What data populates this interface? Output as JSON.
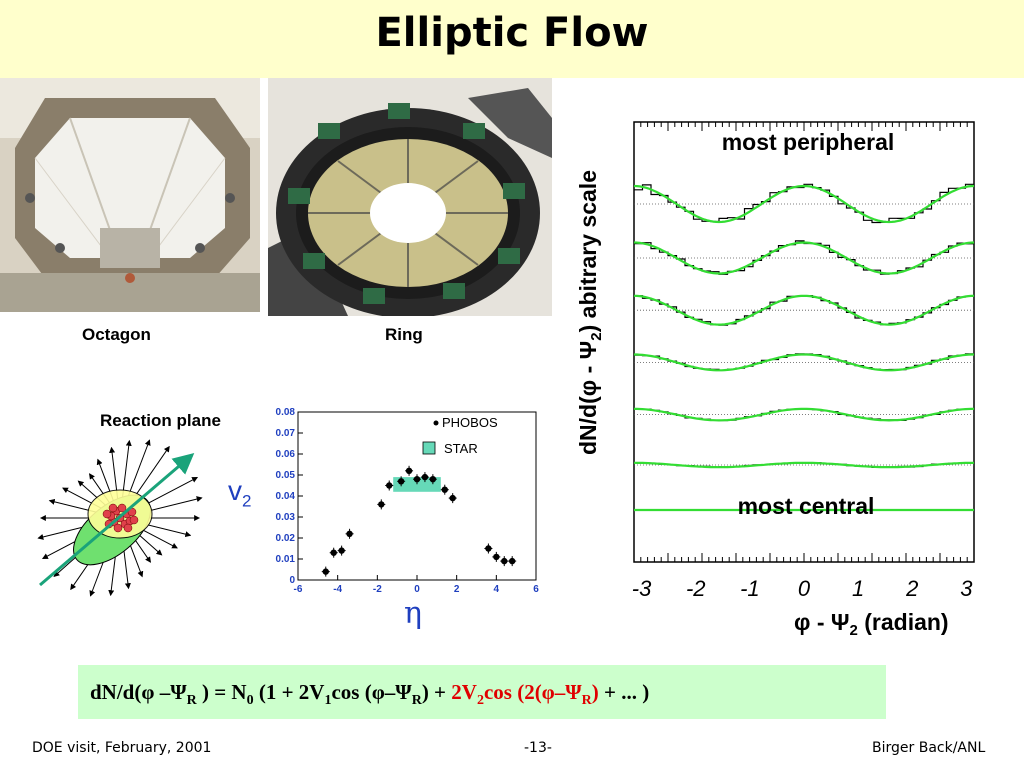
{
  "slide": {
    "title": "Elliptic Flow",
    "footer_left": "DOE visit, February, 2001",
    "footer_center": "-13-",
    "footer_right": "Birger Back/ANL"
  },
  "images": {
    "octagon_caption": "Octagon",
    "ring_caption": "Ring",
    "reaction_plane_label": "Reaction plane"
  },
  "formula": {
    "part1": "dN/d(φ –Ψ",
    "sub_r1": "R",
    "part2": " ) = N",
    "sub_0": "0",
    "part3": " (1 + 2V",
    "sub_1": "1",
    "part4": "cos (φ–Ψ",
    "sub_r2": "R",
    "part5": ") + ",
    "red1": "2V",
    "sub_2": "2",
    "red2": "cos (2(φ–Ψ",
    "sub_r3": "R",
    "red3": ")",
    "part6": " + ... )"
  },
  "colors": {
    "title_band": "#ffffcc",
    "formula_band": "#ccffcc",
    "accent_blue": "#1f3fbf",
    "fit_green": "#33dd33",
    "star_band": "#66d9b8",
    "reaction_plane_arrow": "#1aa37a"
  },
  "chart_data": [
    {
      "type": "scatter",
      "y_axis_symbol": "v",
      "y_axis_symbol_sub": "2",
      "x_axis_symbol": "η",
      "xlim": [
        -6,
        6
      ],
      "ylim": [
        0,
        0.08
      ],
      "x_ticks": [
        "-6",
        "-4",
        "-2",
        "0",
        "2",
        "4",
        "6"
      ],
      "y_ticks": [
        "0",
        "0.01",
        "0.02",
        "0.03",
        "0.04",
        "0.05",
        "0.06",
        "0.07",
        "0.08"
      ],
      "series": [
        {
          "name": "PHOBOS",
          "style": "points",
          "x": [
            -4.6,
            -4.2,
            -3.8,
            -3.4,
            -1.8,
            -1.4,
            -0.8,
            -0.4,
            0.0,
            0.4,
            0.8,
            1.4,
            1.8,
            3.6,
            4.0,
            4.4,
            4.8
          ],
          "y": [
            0.004,
            0.013,
            0.014,
            0.022,
            0.036,
            0.045,
            0.047,
            0.052,
            0.048,
            0.049,
            0.048,
            0.043,
            0.039,
            0.015,
            0.011,
            0.009,
            0.009
          ]
        },
        {
          "name": "STAR",
          "style": "band",
          "x_range": [
            -1.2,
            1.2
          ],
          "y_range": [
            0.042,
            0.049
          ]
        }
      ]
    },
    {
      "type": "line",
      "xlabel_phi": "φ - Ψ",
      "xlabel_sub": "2",
      "xlabel_unit": " (radian)",
      "ylabel_pre": "dN/d(φ - Ψ",
      "ylabel_sub": "2",
      "ylabel_post": ") abitrary scale",
      "xlim": [
        -3.14,
        3.14
      ],
      "x_ticks": [
        "-3",
        "-2",
        "-1",
        "0",
        "1",
        "2",
        "3"
      ],
      "annotation_top": "most peripheral",
      "annotation_bottom": "most central",
      "offsets": [
        0.85,
        0.7,
        0.555,
        0.41,
        0.265,
        0.125,
        0.0
      ],
      "amplitudes": [
        0.05,
        0.043,
        0.04,
        0.022,
        0.016,
        0.006,
        0.0
      ],
      "noise": [
        0.02,
        0.01,
        0.008,
        0.005,
        0.004,
        0.003,
        0.002
      ],
      "bins": 40
    }
  ]
}
